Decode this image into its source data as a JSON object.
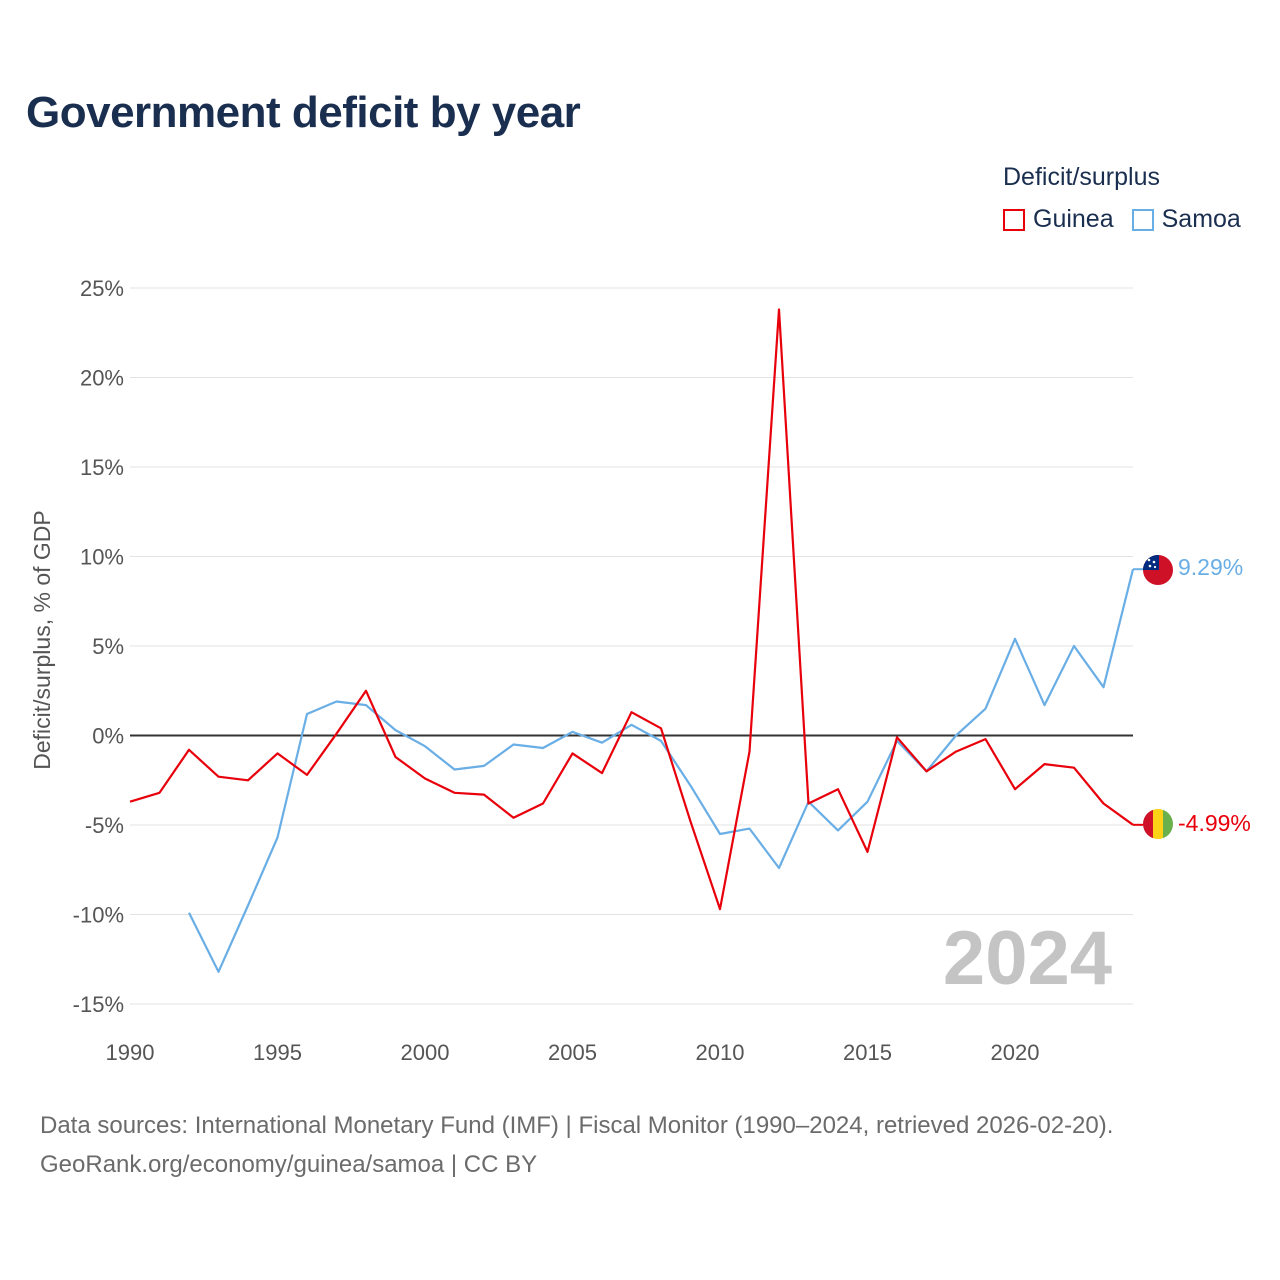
{
  "chart_data": {
    "type": "line",
    "title": "Government deficit by year",
    "legend_title": "Deficit/surplus",
    "ylabel": "Deficit/surplus, % of GDP",
    "xlabel": "",
    "xlim": [
      1990,
      2024
    ],
    "ylim": [
      -15,
      25
    ],
    "x_ticks": [
      1990,
      1995,
      2000,
      2005,
      2010,
      2015,
      2020
    ],
    "x_tick_labels": [
      "1990",
      "1995",
      "2000",
      "2005",
      "2010",
      "2015",
      "2020"
    ],
    "y_ticks": [
      -15,
      -10,
      -5,
      0,
      5,
      10,
      15,
      20,
      25
    ],
    "y_tick_labels": [
      "-15%",
      "-10%",
      "-5%",
      "0%",
      "5%",
      "10%",
      "15%",
      "20%",
      "25%"
    ],
    "year_watermark": "2024",
    "series": [
      {
        "name": "Guinea",
        "color": "#e8000b",
        "end_label": "-4.99%",
        "x": [
          1990,
          1991,
          1992,
          1993,
          1994,
          1995,
          1996,
          1997,
          1998,
          1999,
          2000,
          2001,
          2002,
          2003,
          2004,
          2005,
          2006,
          2007,
          2008,
          2009,
          2010,
          2011,
          2012,
          2013,
          2014,
          2015,
          2016,
          2017,
          2018,
          2019,
          2020,
          2021,
          2022,
          2023,
          2024
        ],
        "values": [
          -3.7,
          -3.2,
          -0.8,
          -2.3,
          -2.5,
          -1.0,
          -2.2,
          0.1,
          2.5,
          -1.2,
          -2.4,
          -3.2,
          -3.3,
          -4.6,
          -3.8,
          -1.0,
          -2.1,
          1.3,
          0.4,
          -4.8,
          -9.7,
          -0.9,
          23.8,
          -3.8,
          -3.0,
          -6.5,
          -0.1,
          -2.0,
          -0.9,
          -0.2,
          -3.0,
          -1.6,
          -1.8,
          -3.8,
          -4.99
        ]
      },
      {
        "name": "Samoa",
        "color": "#6aaee6",
        "end_label": "9.29%",
        "x": [
          1992,
          1993,
          1994,
          1995,
          1996,
          1997,
          1998,
          1999,
          2000,
          2001,
          2002,
          2003,
          2004,
          2005,
          2006,
          2007,
          2008,
          2009,
          2010,
          2011,
          2012,
          2013,
          2014,
          2015,
          2016,
          2017,
          2018,
          2019,
          2020,
          2021,
          2022,
          2023,
          2024
        ],
        "values": [
          -9.9,
          -13.2,
          -9.5,
          -5.7,
          1.2,
          1.9,
          1.7,
          0.3,
          -0.6,
          -1.9,
          -1.7,
          -0.5,
          -0.7,
          0.2,
          -0.4,
          0.6,
          -0.3,
          -2.8,
          -5.5,
          -5.2,
          -7.4,
          -3.7,
          -5.3,
          -3.7,
          -0.3,
          -2.0,
          0.0,
          1.5,
          5.4,
          1.7,
          5.0,
          2.7,
          9.29
        ]
      }
    ]
  },
  "footer": {
    "line1": "Data sources: International Monetary Fund (IMF) | Fiscal Monitor (1990–2024, retrieved 2026-02-20).",
    "line2": "GeoRank.org/economy/guinea/samoa | CC BY"
  }
}
